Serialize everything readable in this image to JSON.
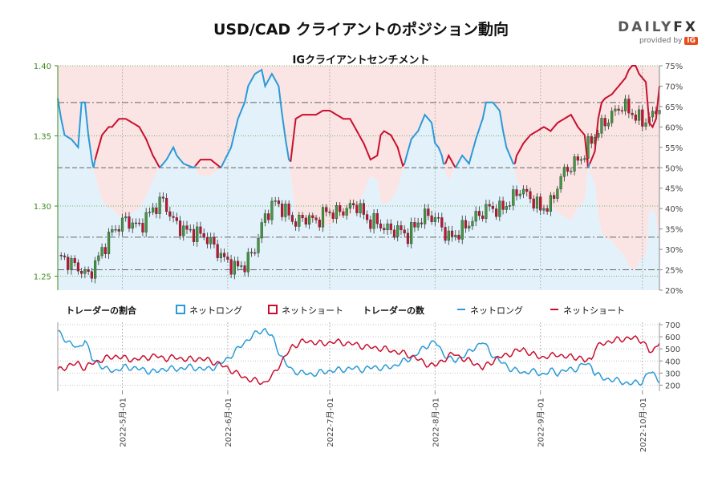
{
  "header": {
    "title": "USD/CAD クライアントのポジション動向",
    "subtitle": "IGクライアントセンチメント",
    "brand_name_1": "DAILY",
    "brand_name_2": "FX",
    "brand_sub": "provided by",
    "brand_ig": "IG"
  },
  "colors": {
    "long": "#2a9ad8",
    "short": "#c8102e",
    "short_zone": "#fbe4e4",
    "long_zone": "#e3f1fa",
    "candle_up": "#3e9a3e",
    "candle_down": "#c8102e",
    "axis_left": "#3a8a1a"
  },
  "legend": {
    "ratio_title": "トレーダーの割合",
    "ratio_long": "ネットロング",
    "ratio_short": "ネットショート",
    "count_title": "トレーダーの数",
    "count_long": "ネットロング",
    "count_short": "ネットショート"
  },
  "chart_data": [
    {
      "type": "line",
      "title": "IGクライアントセンチメント",
      "price_axis": {
        "ylim": [
          1.24,
          1.4
        ],
        "ticks": [
          "1.25",
          "1.30",
          "1.35",
          "1.40"
        ]
      },
      "percent_axis": {
        "ylim": [
          20,
          75
        ],
        "ticks": [
          "20%",
          "25%",
          "30%",
          "35%",
          "40%",
          "45%",
          "50%",
          "55%",
          "60%",
          "65%",
          "70%",
          "75%"
        ]
      },
      "x_tick_labels": [
        "2022-5月-01",
        "2022-6月-01",
        "2022-7月-01",
        "2022-8月-01",
        "2022-9月-01",
        "2022-10月-01"
      ],
      "x_tick_days": [
        19,
        50,
        80,
        111,
        142,
        172
      ],
      "x_range_days": [
        0,
        177
      ],
      "reference_lines_percent": [
        25,
        33,
        50,
        66
      ],
      "price_anchors": [
        [
          0,
          1.265
        ],
        [
          6,
          1.256
        ],
        [
          9,
          1.25
        ],
        [
          13,
          1.268
        ],
        [
          16,
          1.282
        ],
        [
          20,
          1.29
        ],
        [
          24,
          1.285
        ],
        [
          28,
          1.298
        ],
        [
          31,
          1.304
        ],
        [
          34,
          1.289
        ],
        [
          37,
          1.283
        ],
        [
          40,
          1.281
        ],
        [
          43,
          1.279
        ],
        [
          46,
          1.271
        ],
        [
          49,
          1.262
        ],
        [
          52,
          1.256
        ],
        [
          55,
          1.258
        ],
        [
          58,
          1.27
        ],
        [
          61,
          1.293
        ],
        [
          64,
          1.303
        ],
        [
          67,
          1.296
        ],
        [
          70,
          1.288
        ],
        [
          73,
          1.292
        ],
        [
          76,
          1.289
        ],
        [
          79,
          1.296
        ],
        [
          82,
          1.295
        ],
        [
          85,
          1.298
        ],
        [
          88,
          1.301
        ],
        [
          91,
          1.29
        ],
        [
          94,
          1.288
        ],
        [
          97,
          1.283
        ],
        [
          100,
          1.283
        ],
        [
          103,
          1.279
        ],
        [
          106,
          1.289
        ],
        [
          109,
          1.294
        ],
        [
          112,
          1.289
        ],
        [
          115,
          1.277
        ],
        [
          118,
          1.281
        ],
        [
          121,
          1.288
        ],
        [
          124,
          1.294
        ],
        [
          127,
          1.299
        ],
        [
          130,
          1.297
        ],
        [
          133,
          1.303
        ],
        [
          136,
          1.312
        ],
        [
          139,
          1.306
        ],
        [
          142,
          1.298
        ],
        [
          145,
          1.301
        ],
        [
          148,
          1.321
        ],
        [
          151,
          1.329
        ],
        [
          154,
          1.334
        ],
        [
          157,
          1.347
        ],
        [
          160,
          1.357
        ],
        [
          163,
          1.365
        ],
        [
          166,
          1.372
        ],
        [
          169,
          1.366
        ],
        [
          172,
          1.36
        ],
        [
          175,
          1.364
        ],
        [
          177,
          1.372
        ]
      ],
      "long_percent_anchors": [
        [
          0,
          67
        ],
        [
          1,
          62
        ],
        [
          2,
          58
        ],
        [
          4,
          57
        ],
        [
          6,
          55
        ],
        [
          7,
          66
        ],
        [
          8,
          66
        ],
        [
          9,
          58
        ],
        [
          10,
          52
        ],
        [
          11,
          48
        ],
        [
          12,
          45
        ],
        [
          13,
          42
        ],
        [
          14,
          41
        ],
        [
          15,
          40
        ],
        [
          16,
          40
        ],
        [
          18,
          38
        ],
        [
          20,
          38
        ],
        [
          22,
          39
        ],
        [
          24,
          40
        ],
        [
          26,
          43
        ],
        [
          28,
          47
        ],
        [
          30,
          50
        ],
        [
          32,
          52
        ],
        [
          34,
          55
        ],
        [
          35,
          53
        ],
        [
          37,
          51
        ],
        [
          40,
          50
        ],
        [
          42,
          48
        ],
        [
          45,
          48
        ],
        [
          48,
          50
        ],
        [
          51,
          55
        ],
        [
          53,
          62
        ],
        [
          55,
          66
        ],
        [
          56,
          70
        ],
        [
          58,
          73
        ],
        [
          60,
          74
        ],
        [
          61,
          70
        ],
        [
          63,
          73
        ],
        [
          65,
          70
        ],
        [
          66,
          63
        ],
        [
          67,
          57
        ],
        [
          68,
          52
        ],
        [
          69,
          45
        ],
        [
          70,
          38
        ],
        [
          72,
          37
        ],
        [
          74,
          37
        ],
        [
          76,
          37
        ],
        [
          78,
          36
        ],
        [
          80,
          36
        ],
        [
          82,
          37
        ],
        [
          84,
          38
        ],
        [
          86,
          38
        ],
        [
          88,
          41
        ],
        [
          90,
          44
        ],
        [
          92,
          48
        ],
        [
          94,
          47
        ],
        [
          95,
          42
        ],
        [
          96,
          41
        ],
        [
          98,
          42
        ],
        [
          100,
          45
        ],
        [
          102,
          51
        ],
        [
          104,
          57
        ],
        [
          106,
          59
        ],
        [
          108,
          63
        ],
        [
          110,
          61
        ],
        [
          111,
          56
        ],
        [
          112,
          55
        ],
        [
          113,
          53
        ],
        [
          114,
          49
        ],
        [
          115,
          47
        ],
        [
          117,
          50
        ],
        [
          119,
          53
        ],
        [
          121,
          51
        ],
        [
          123,
          57
        ],
        [
          125,
          62
        ],
        [
          126,
          66
        ],
        [
          128,
          66
        ],
        [
          130,
          64
        ],
        [
          131,
          59
        ],
        [
          132,
          55
        ],
        [
          134,
          51
        ],
        [
          135,
          47
        ],
        [
          137,
          44
        ],
        [
          139,
          42
        ],
        [
          141,
          41
        ],
        [
          143,
          40
        ],
        [
          145,
          41
        ],
        [
          147,
          39
        ],
        [
          149,
          38
        ],
        [
          151,
          37
        ],
        [
          153,
          40
        ],
        [
          155,
          42
        ],
        [
          156,
          50
        ],
        [
          157,
          48
        ],
        [
          158,
          46
        ],
        [
          159,
          38
        ],
        [
          160,
          34
        ],
        [
          161,
          33
        ],
        [
          163,
          32
        ],
        [
          165,
          30
        ],
        [
          167,
          28
        ],
        [
          168,
          26
        ],
        [
          169,
          25
        ],
        [
          170,
          25
        ],
        [
          171,
          27
        ],
        [
          172,
          28
        ],
        [
          173,
          29
        ],
        [
          174,
          39
        ],
        [
          175,
          40
        ],
        [
          176,
          38
        ],
        [
          177,
          30
        ]
      ],
      "long_count_anchors": [
        [
          0,
          640
        ],
        [
          3,
          560
        ],
        [
          6,
          500
        ],
        [
          8,
          580
        ],
        [
          10,
          420
        ],
        [
          12,
          380
        ],
        [
          14,
          330
        ],
        [
          17,
          320
        ],
        [
          20,
          350
        ],
        [
          23,
          340
        ],
        [
          26,
          320
        ],
        [
          29,
          310
        ],
        [
          32,
          340
        ],
        [
          35,
          330
        ],
        [
          38,
          350
        ],
        [
          41,
          340
        ],
        [
          44,
          330
        ],
        [
          47,
          360
        ],
        [
          50,
          420
        ],
        [
          53,
          500
        ],
        [
          56,
          580
        ],
        [
          59,
          640
        ],
        [
          61,
          660
        ],
        [
          63,
          600
        ],
        [
          65,
          480
        ],
        [
          67,
          380
        ],
        [
          69,
          320
        ],
        [
          72,
          300
        ],
        [
          75,
          290
        ],
        [
          78,
          310
        ],
        [
          81,
          320
        ],
        [
          84,
          330
        ],
        [
          87,
          340
        ],
        [
          90,
          330
        ],
        [
          93,
          350
        ],
        [
          96,
          340
        ],
        [
          99,
          360
        ],
        [
          102,
          400
        ],
        [
          105,
          440
        ],
        [
          108,
          520
        ],
        [
          111,
          560
        ],
        [
          113,
          480
        ],
        [
          115,
          420
        ],
        [
          117,
          400
        ],
        [
          119,
          440
        ],
        [
          121,
          470
        ],
        [
          123,
          520
        ],
        [
          125,
          560
        ],
        [
          127,
          480
        ],
        [
          129,
          420
        ],
        [
          131,
          380
        ],
        [
          133,
          340
        ],
        [
          135,
          320
        ],
        [
          137,
          300
        ],
        [
          139,
          320
        ],
        [
          141,
          300
        ],
        [
          143,
          290
        ],
        [
          145,
          320
        ],
        [
          147,
          300
        ],
        [
          149,
          320
        ],
        [
          151,
          330
        ],
        [
          153,
          340
        ],
        [
          155,
          380
        ],
        [
          157,
          360
        ],
        [
          158,
          300
        ],
        [
          160,
          260
        ],
        [
          162,
          250
        ],
        [
          164,
          240
        ],
        [
          166,
          230
        ],
        [
          168,
          210
        ],
        [
          170,
          220
        ],
        [
          172,
          230
        ],
        [
          174,
          310
        ],
        [
          175,
          300
        ],
        [
          177,
          240
        ]
      ],
      "short_count_anchors": [
        [
          0,
          320
        ],
        [
          3,
          360
        ],
        [
          6,
          380
        ],
        [
          8,
          340
        ],
        [
          10,
          380
        ],
        [
          12,
          400
        ],
        [
          14,
          420
        ],
        [
          17,
          440
        ],
        [
          20,
          420
        ],
        [
          23,
          410
        ],
        [
          26,
          430
        ],
        [
          29,
          440
        ],
        [
          32,
          420
        ],
        [
          35,
          430
        ],
        [
          38,
          410
        ],
        [
          41,
          420
        ],
        [
          44,
          410
        ],
        [
          47,
          380
        ],
        [
          50,
          340
        ],
        [
          53,
          290
        ],
        [
          56,
          250
        ],
        [
          59,
          230
        ],
        [
          61,
          220
        ],
        [
          63,
          270
        ],
        [
          65,
          360
        ],
        [
          67,
          440
        ],
        [
          69,
          520
        ],
        [
          72,
          560
        ],
        [
          75,
          560
        ],
        [
          78,
          540
        ],
        [
          81,
          560
        ],
        [
          84,
          550
        ],
        [
          87,
          540
        ],
        [
          90,
          520
        ],
        [
          93,
          510
        ],
        [
          96,
          500
        ],
        [
          99,
          480
        ],
        [
          102,
          460
        ],
        [
          105,
          430
        ],
        [
          108,
          380
        ],
        [
          111,
          360
        ],
        [
          113,
          400
        ],
        [
          115,
          440
        ],
        [
          117,
          460
        ],
        [
          119,
          420
        ],
        [
          121,
          400
        ],
        [
          123,
          380
        ],
        [
          125,
          340
        ],
        [
          127,
          380
        ],
        [
          129,
          420
        ],
        [
          131,
          440
        ],
        [
          133,
          460
        ],
        [
          135,
          480
        ],
        [
          137,
          500
        ],
        [
          139,
          460
        ],
        [
          141,
          440
        ],
        [
          143,
          430
        ],
        [
          145,
          440
        ],
        [
          147,
          460
        ],
        [
          149,
          430
        ],
        [
          151,
          440
        ],
        [
          153,
          430
        ],
        [
          155,
          400
        ],
        [
          157,
          420
        ],
        [
          158,
          500
        ],
        [
          160,
          540
        ],
        [
          162,
          560
        ],
        [
          164,
          570
        ],
        [
          166,
          580
        ],
        [
          168,
          590
        ],
        [
          170,
          585
        ],
        [
          172,
          570
        ],
        [
          174,
          480
        ],
        [
          175,
          470
        ],
        [
          177,
          570
        ]
      ],
      "count_axis": {
        "ylim": [
          150,
          720
        ],
        "ticks": [
          "200",
          "300",
          "400",
          "500",
          "600",
          "700"
        ]
      }
    }
  ]
}
